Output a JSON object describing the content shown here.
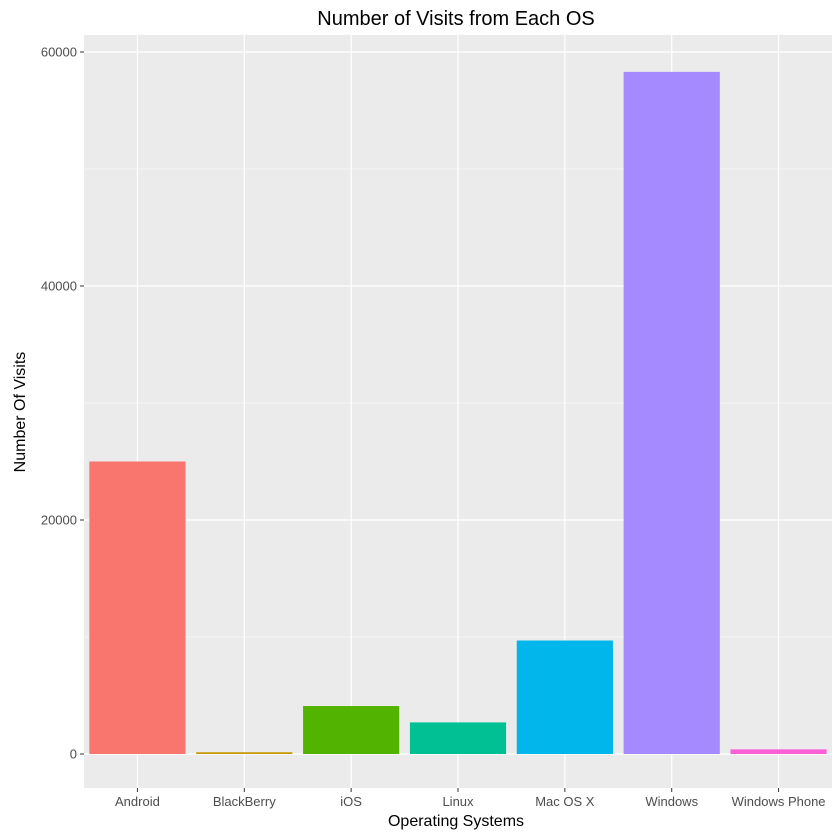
{
  "chart_data": {
    "type": "bar",
    "title": "Number of Visits from Each OS",
    "xlabel": "Operating Systems",
    "ylabel": "Number Of Visits",
    "categories": [
      "Android",
      "BlackBerry",
      "iOS",
      "Linux",
      "Mac OS X",
      "Windows",
      "Windows Phone"
    ],
    "values": [
      25000,
      150,
      4100,
      2700,
      9700,
      58300,
      400
    ],
    "colors": [
      "#F8766D",
      "#C49A00",
      "#53B400",
      "#00C094",
      "#00B6EB",
      "#A58AFF",
      "#FB61D7"
    ],
    "ylim": [
      0,
      60000
    ],
    "yticks": [
      0,
      20000,
      40000,
      60000
    ],
    "ytick_labels": [
      "0",
      "20000",
      "40000",
      "60000"
    ],
    "grid": true,
    "legend": "none",
    "panel_background": "#EBEBEB"
  }
}
